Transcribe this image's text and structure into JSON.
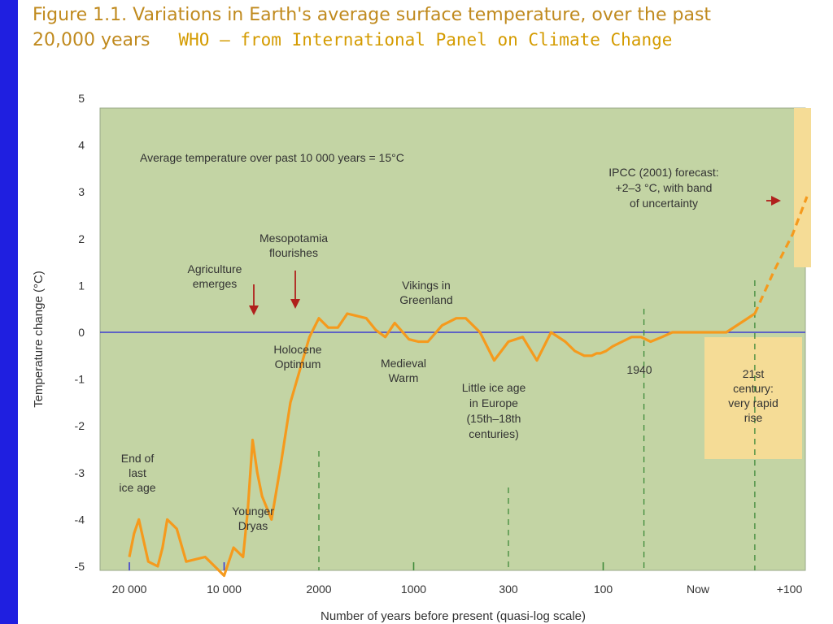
{
  "title": {
    "line1": "Figure 1.1. Variations in Earth's average surface temperature, over the past",
    "line2": "20,000 years",
    "source": "WHO – from International Panel on Climate Change"
  },
  "colors": {
    "slide_bar": "#1f1fe0",
    "title": "#c08a1e",
    "plot_bg": "#c3d4a4",
    "series": "#f59a1d",
    "zero_line": "#3c3cd0",
    "arrow": "#b0201c",
    "box_fill": "#f5dc96"
  },
  "chart_data": {
    "type": "line",
    "ylabel": "Temperature change (°C)",
    "xlabel": "Number of years before present (quasi-log scale)",
    "ylim": [
      -5.5,
      5
    ],
    "y_ticks": [
      "5",
      "4",
      "3",
      "2",
      "1",
      "0",
      "-1",
      "-2",
      "-3",
      "-4",
      "-5"
    ],
    "x_ticks": [
      "20 000",
      "10 000",
      "2000",
      "1000",
      "300",
      "100",
      "Now",
      "+100"
    ],
    "series": [
      {
        "x": [
          0,
          0.05,
          0.1,
          0.2,
          0.3,
          0.35,
          0.4,
          0.5,
          0.6,
          0.8,
          0.9,
          1.0,
          1.1,
          1.2,
          1.25,
          1.3,
          1.35,
          1.4,
          1.5,
          1.6,
          1.7,
          1.8,
          1.9,
          2.0,
          2.1,
          2.2,
          2.3,
          2.4,
          2.5,
          2.6,
          2.7,
          2.8,
          2.95,
          3.05,
          3.15,
          3.3,
          3.45,
          3.55,
          3.7,
          3.85,
          4.0,
          4.15,
          4.3,
          4.45,
          4.6,
          4.7,
          4.8,
          4.88,
          4.93,
          4.97,
          5.03,
          5.1,
          5.2,
          5.3,
          5.4,
          5.5,
          5.62,
          5.73,
          5.85,
          6.0,
          6.15,
          6.3,
          6.45,
          6.6,
          6.8,
          7.0,
          7.15
        ],
        "y": [
          -4.8,
          -4.3,
          -4.0,
          -4.9,
          -5.0,
          -4.6,
          -4.0,
          -4.2,
          -4.9,
          -4.8,
          -5.0,
          -5.2,
          -4.6,
          -4.8,
          -3.8,
          -2.3,
          -3.0,
          -3.5,
          -4.0,
          -2.8,
          -1.5,
          -0.8,
          -0.1,
          0.3,
          0.1,
          0.1,
          0.4,
          0.35,
          0.3,
          0.05,
          -0.1,
          0.2,
          -0.15,
          -0.2,
          -0.2,
          0.15,
          0.3,
          0.3,
          0.0,
          -0.6,
          -0.2,
          -0.1,
          -0.6,
          0.0,
          -0.2,
          -0.4,
          -0.5,
          -0.5,
          -0.45,
          -0.45,
          -0.4,
          -0.3,
          -0.2,
          -0.1,
          -0.1,
          -0.2,
          -0.1,
          0.0,
          0.0,
          0.0,
          0.0,
          0.0,
          0.2,
          0.4,
          1.3,
          2.1,
          2.9
        ]
      }
    ],
    "forecast_start_x": 6.6,
    "average_line_y": 0,
    "vertical_markers_x": [
      2.0,
      4.0,
      5.43,
      6.6
    ],
    "annotations": {
      "average": "Average temperature over past 10 000 years = 15°C",
      "ipcc": [
        "IPCC (2001) forecast:",
        "+2–3 °C, with band",
        "of uncertainty"
      ],
      "mesopotamia": [
        "Mesopotamia",
        "flourishes"
      ],
      "agriculture": [
        "Agriculture",
        "emerges"
      ],
      "vikings": [
        "Vikings in",
        "Greenland"
      ],
      "holocene": [
        "Holocene",
        "Optimum"
      ],
      "medieval": [
        "Medieval",
        "Warm"
      ],
      "little_ice_age": [
        "Little ice age",
        "in Europe",
        "(15th–18th",
        "centuries)"
      ],
      "year_1940": "1940",
      "century21": [
        "21st",
        "century:",
        "very rapid",
        "rise"
      ],
      "end_ice_age": [
        "End of",
        "last",
        "ice age"
      ],
      "younger_dryas": [
        "Younger",
        "Dryas"
      ]
    }
  }
}
